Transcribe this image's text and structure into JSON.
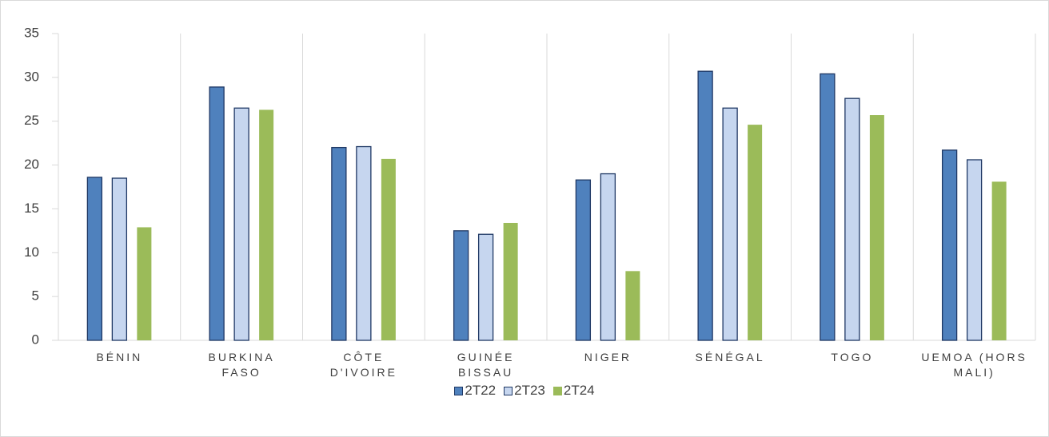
{
  "chart_data": {
    "type": "bar",
    "categories": [
      "BÉNIN",
      "BURKINA FASO",
      "CÔTE D'IVOIRE",
      "GUINÉE BISSAU",
      "NIGER",
      "SÉNÉGAL",
      "TOGO",
      "UEMOA (HORS MALI)"
    ],
    "series": [
      {
        "name": "2T22",
        "color": "#4f81bd",
        "values": [
          18.6,
          28.9,
          22.0,
          12.5,
          18.3,
          30.7,
          30.4,
          21.7
        ]
      },
      {
        "name": "2T23",
        "color": "#c6d6ef",
        "values": [
          18.5,
          26.5,
          22.1,
          12.1,
          19.0,
          26.5,
          27.6,
          20.6
        ]
      },
      {
        "name": "2T24",
        "color": "#9bbb59",
        "values": [
          12.9,
          26.3,
          20.7,
          13.4,
          7.9,
          24.6,
          25.7,
          18.1
        ]
      }
    ],
    "ylim": [
      0,
      35
    ],
    "yticks": [
      0,
      5,
      10,
      15,
      20,
      25,
      30,
      35
    ],
    "legend": "bottom"
  }
}
